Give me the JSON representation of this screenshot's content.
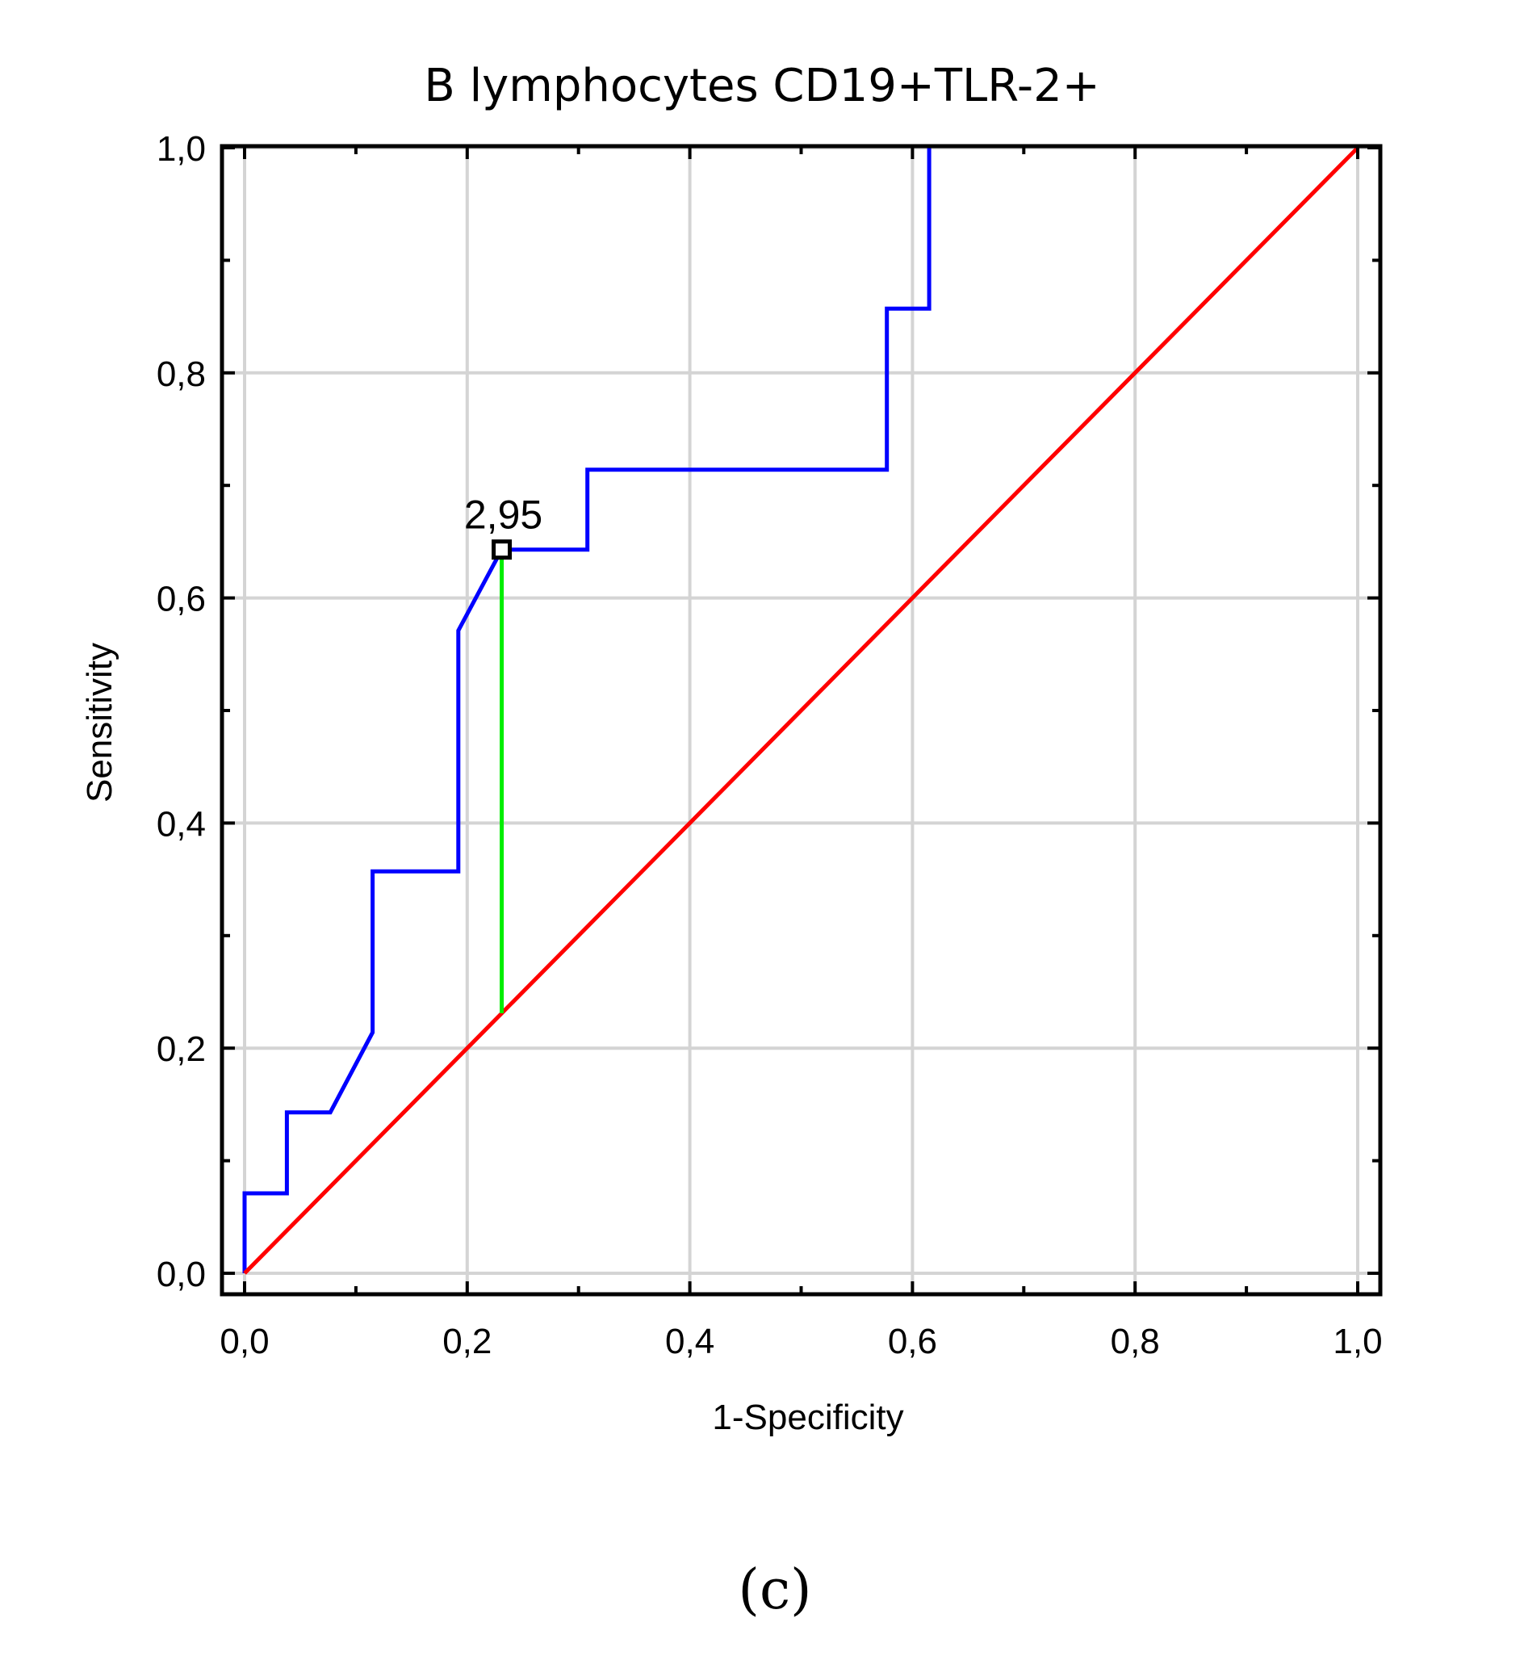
{
  "chart_data": {
    "type": "line",
    "title": "B lymphocytes CD19+TLR-2+",
    "xlabel": "1-Specificity",
    "ylabel": "Sensitivity",
    "xlim": [
      0.0,
      1.0
    ],
    "ylim": [
      0.0,
      1.0
    ],
    "x_ticks": [
      "0,0",
      "0,2",
      "0,4",
      "0,6",
      "0,8",
      "1,0"
    ],
    "y_ticks": [
      "0,0",
      "0,2",
      "0,4",
      "0,6",
      "0,8",
      "1,0"
    ],
    "grid": true,
    "caption": "(c)",
    "series": [
      {
        "color": "#0000ff",
        "points": [
          [
            0.0,
            0.0
          ],
          [
            0.0,
            0.071
          ],
          [
            0.038,
            0.071
          ],
          [
            0.038,
            0.143
          ],
          [
            0.077,
            0.143
          ],
          [
            0.115,
            0.214
          ],
          [
            0.115,
            0.357
          ],
          [
            0.192,
            0.357
          ],
          [
            0.192,
            0.571
          ],
          [
            0.231,
            0.643
          ],
          [
            0.308,
            0.643
          ],
          [
            0.308,
            0.714
          ],
          [
            0.577,
            0.714
          ],
          [
            0.577,
            0.857
          ],
          [
            0.615,
            0.857
          ],
          [
            0.615,
            1.0
          ]
        ]
      },
      {
        "color": "#ff0000",
        "points": [
          [
            0.0,
            0.0
          ],
          [
            1.0,
            1.0
          ]
        ]
      }
    ],
    "cutoff": {
      "label": "2,95",
      "x": 0.231,
      "y": 0.643,
      "marker_color": "#000000",
      "line_color": "#00ee00",
      "line_from_y": 0.231
    }
  }
}
